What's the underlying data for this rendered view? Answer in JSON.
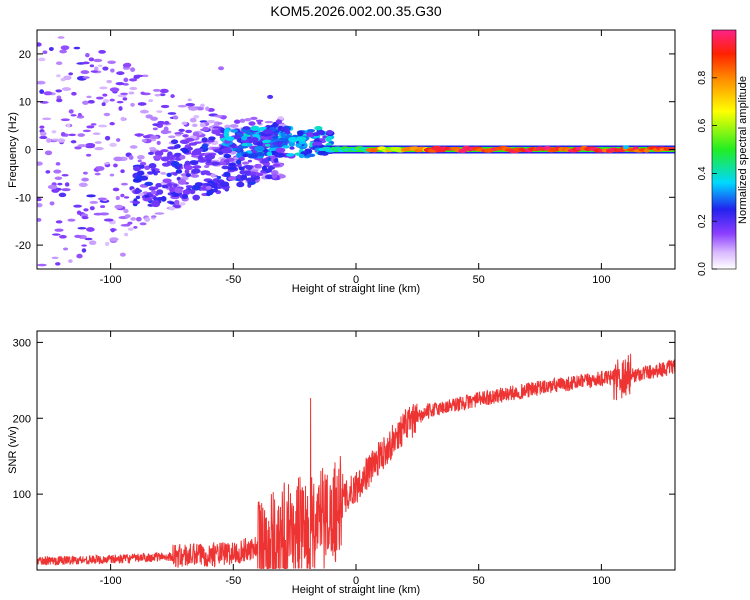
{
  "title": "KOM5.2026.002.00.35.G30",
  "chart_data": [
    {
      "type": "heatmap",
      "name": "spectrogram",
      "xlabel": "Height of straight line (km)",
      "ylabel": "Frequency (Hz)",
      "xlim": [
        -130,
        130
      ],
      "ylim": [
        -25,
        25
      ],
      "xticks": [
        -100,
        -50,
        0,
        50,
        100
      ],
      "xtick_labels": [
        "-100",
        "-50",
        "0",
        "50",
        "100"
      ],
      "yticks": [
        -20,
        -10,
        0,
        10,
        20
      ],
      "ytick_labels": [
        "-20",
        "-10",
        "0",
        "10",
        "20"
      ],
      "colorbar": {
        "label": "Normalized spectral amplitude",
        "range": [
          0,
          1
        ],
        "ticks": [
          0.0,
          0.2,
          0.4,
          0.6,
          0.8
        ],
        "tick_labels": [
          "0.0",
          "0.2",
          "0.4",
          "0.6",
          "0.8"
        ]
      },
      "features": [
        {
          "desc": "strong carrier line near 0 Hz",
          "x_range": [
            0,
            130
          ],
          "freq": 0,
          "amplitude": 0.95
        },
        {
          "desc": "weaker carrier segment",
          "x_range": [
            -50,
            0
          ],
          "freq": 1,
          "amplitude": 0.4
        },
        {
          "desc": "diffuse scatter",
          "x_range": [
            -130,
            -50
          ],
          "freq_range": [
            -25,
            25
          ],
          "amplitude": 0.1
        }
      ]
    },
    {
      "type": "line",
      "name": "snr",
      "xlabel": "Height of straight line (km)",
      "ylabel": "SNR (v/v)",
      "xlim": [
        -130,
        130
      ],
      "ylim": [
        0,
        315
      ],
      "xticks": [
        -100,
        -50,
        0,
        50,
        100
      ],
      "xtick_labels": [
        "-100",
        "-50",
        "0",
        "50",
        "100"
      ],
      "yticks": [
        100,
        200,
        300
      ],
      "ytick_labels": [
        "100",
        "200",
        "300"
      ],
      "color": "#ee3333",
      "trend": {
        "x": [
          -130,
          -100,
          -75,
          -50,
          -35,
          -20,
          -10,
          0,
          10,
          20,
          30,
          50,
          75,
          100,
          110,
          130
        ],
        "y": [
          12,
          14,
          18,
          22,
          35,
          60,
          75,
          110,
          150,
          190,
          210,
          225,
          240,
          252,
          255,
          268
        ]
      }
    }
  ]
}
